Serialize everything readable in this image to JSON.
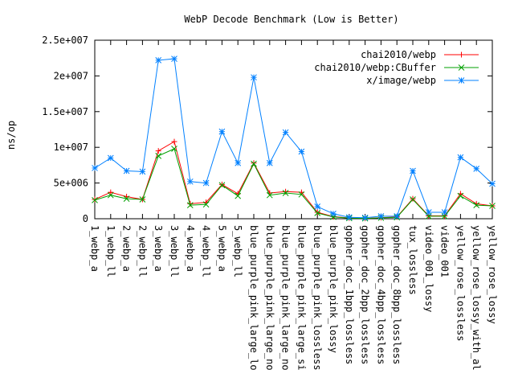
{
  "chart_data": {
    "type": "line",
    "title": "WebP Decode Benchmark (Low is Better)",
    "xlabel": "",
    "ylabel": "ns/op",
    "ylim": [
      0,
      25000000
    ],
    "yticks": [
      {
        "value": 0,
        "label": "0"
      },
      {
        "value": 5000000,
        "label": "5e+006"
      },
      {
        "value": 10000000,
        "label": "1e+007"
      },
      {
        "value": 15000000,
        "label": "1.5e+007"
      },
      {
        "value": 20000000,
        "label": "2e+007"
      },
      {
        "value": 25000000,
        "label": "2.5e+007"
      }
    ],
    "grid": false,
    "legend": "top-right",
    "categories": [
      "1_webp_a",
      "1_webp_ll",
      "2_webp_a",
      "2_webp_ll",
      "3_webp_a",
      "3_webp_ll",
      "4_webp_a",
      "4_webp_ll",
      "5_webp_a",
      "5_webp_ll",
      "blue_purple_pink_large_lo",
      "blue_purple_pink_large_no",
      "blue_purple_pink_large_no",
      "blue_purple_pink_large_si",
      "blue_purple_pink_lossless",
      "blue_purple_pink_lossy",
      "gopher_doc_1bpp_lossless",
      "gopher_doc_2bpp_lossless",
      "gopher_doc_4bpp_lossless",
      "gopher_doc_8bpp_lossless",
      "tux_lossless",
      "video_001_lossy",
      "video_001",
      "yellow_rose_lossless",
      "yellow_rose_lossy_with_al",
      "yellow_rose_lossy"
    ],
    "series": [
      {
        "name": "chai2010/webp",
        "color": "#ff0000",
        "marker": "plus",
        "values": [
          2700000,
          3700000,
          3100000,
          2700000,
          9500000,
          10800000,
          2100000,
          2300000,
          4800000,
          3500000,
          7800000,
          3600000,
          3800000,
          3700000,
          900000,
          300000,
          100000,
          50000,
          150000,
          250000,
          2800000,
          400000,
          400000,
          3500000,
          2100000,
          1800000
        ]
      },
      {
        "name": "chai2010/webp:CBuffer",
        "color": "#00a000",
        "marker": "cross",
        "values": [
          2600000,
          3300000,
          2800000,
          2700000,
          8800000,
          9800000,
          1900000,
          2000000,
          4700000,
          3200000,
          7700000,
          3300000,
          3600000,
          3400000,
          800000,
          250000,
          80000,
          40000,
          120000,
          200000,
          2700000,
          350000,
          350000,
          3200000,
          1900000,
          1800000
        ]
      },
      {
        "name": "x/image/webp",
        "color": "#0080ff",
        "marker": "star",
        "values": [
          7100000,
          8500000,
          6700000,
          6600000,
          22200000,
          22400000,
          5200000,
          5000000,
          12200000,
          7800000,
          19800000,
          7800000,
          12100000,
          9400000,
          1700000,
          700000,
          200000,
          150000,
          350000,
          350000,
          6700000,
          900000,
          900000,
          8600000,
          7000000,
          4900000
        ]
      }
    ]
  }
}
